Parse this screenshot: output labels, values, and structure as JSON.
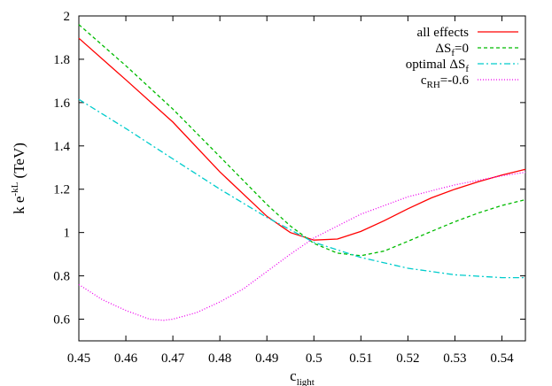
{
  "chart_data": {
    "type": "line",
    "xlabel": {
      "main": "c",
      "sub": "light"
    },
    "ylabel": {
      "main": "k e",
      "sup": "-kL",
      "unit": " (TeV)"
    },
    "xlim": [
      0.45,
      0.545
    ],
    "ylim": [
      0.5,
      2.0
    ],
    "xticks": [
      0.45,
      0.46,
      0.47,
      0.48,
      0.49,
      0.5,
      0.51,
      0.52,
      0.53,
      0.54
    ],
    "xtick_labels": [
      "0.45",
      "0.46",
      "0.47",
      "0.48",
      "0.49",
      "0.5",
      "0.51",
      "0.52",
      "0.53",
      "0.54"
    ],
    "yticks": [
      0.6,
      0.8,
      1.0,
      1.2,
      1.4,
      1.6,
      1.8,
      2.0
    ],
    "ytick_labels": [
      "0.6",
      "0.8",
      "1",
      "1.2",
      "1.4",
      "1.6",
      "1.8",
      "2"
    ],
    "grid": false,
    "legend_position": "top-right",
    "series": [
      {
        "id": "all-effects",
        "name": "all effects",
        "label_parts": {
          "main": "all effects"
        },
        "color": "#ff0000",
        "dash": "",
        "points": [
          [
            0.45,
            1.897
          ],
          [
            0.46,
            1.705
          ],
          [
            0.47,
            1.51
          ],
          [
            0.48,
            1.28
          ],
          [
            0.49,
            1.075
          ],
          [
            0.495,
            1.0
          ],
          [
            0.5,
            0.965
          ],
          [
            0.505,
            0.97
          ],
          [
            0.51,
            1.005
          ],
          [
            0.515,
            1.055
          ],
          [
            0.52,
            1.11
          ],
          [
            0.525,
            1.16
          ],
          [
            0.53,
            1.2
          ],
          [
            0.535,
            1.235
          ],
          [
            0.54,
            1.265
          ],
          [
            0.545,
            1.292
          ]
        ]
      },
      {
        "id": "delta-sf-zero",
        "name": "ΔSf=0",
        "label_parts": {
          "main": "ΔS",
          "sub": "f",
          "tail": "=0"
        },
        "color": "#00bb00",
        "dash": "4,3",
        "points": [
          [
            0.45,
            1.96
          ],
          [
            0.46,
            1.77
          ],
          [
            0.47,
            1.57
          ],
          [
            0.48,
            1.35
          ],
          [
            0.49,
            1.13
          ],
          [
            0.495,
            1.03
          ],
          [
            0.5,
            0.95
          ],
          [
            0.505,
            0.905
          ],
          [
            0.51,
            0.893
          ],
          [
            0.515,
            0.915
          ],
          [
            0.52,
            0.96
          ],
          [
            0.525,
            1.005
          ],
          [
            0.53,
            1.05
          ],
          [
            0.535,
            1.09
          ],
          [
            0.54,
            1.125
          ],
          [
            0.545,
            1.152
          ]
        ]
      },
      {
        "id": "optimal-delta-sf",
        "name": "optimal ΔSf",
        "label_parts": {
          "main": "optimal ΔS",
          "sub": "f"
        },
        "color": "#00cccc",
        "dash": "7,3,2,3",
        "points": [
          [
            0.45,
            1.615
          ],
          [
            0.46,
            1.48
          ],
          [
            0.47,
            1.34
          ],
          [
            0.48,
            1.2
          ],
          [
            0.49,
            1.07
          ],
          [
            0.5,
            0.955
          ],
          [
            0.51,
            0.885
          ],
          [
            0.52,
            0.835
          ],
          [
            0.53,
            0.805
          ],
          [
            0.54,
            0.792
          ],
          [
            0.545,
            0.792
          ]
        ]
      },
      {
        "id": "c-rh",
        "name": "cRH=-0.6",
        "label_parts": {
          "main": "c",
          "sub": "RH",
          "tail": "=-0.6"
        },
        "color": "#ee00ee",
        "dash": "1,2",
        "points": [
          [
            0.45,
            0.76
          ],
          [
            0.455,
            0.69
          ],
          [
            0.46,
            0.64
          ],
          [
            0.465,
            0.6
          ],
          [
            0.468,
            0.595
          ],
          [
            0.47,
            0.6
          ],
          [
            0.475,
            0.63
          ],
          [
            0.48,
            0.68
          ],
          [
            0.485,
            0.74
          ],
          [
            0.49,
            0.82
          ],
          [
            0.495,
            0.9
          ],
          [
            0.5,
            0.975
          ],
          [
            0.505,
            1.03
          ],
          [
            0.51,
            1.085
          ],
          [
            0.52,
            1.165
          ],
          [
            0.53,
            1.22
          ],
          [
            0.54,
            1.262
          ],
          [
            0.545,
            1.278
          ]
        ]
      }
    ]
  }
}
